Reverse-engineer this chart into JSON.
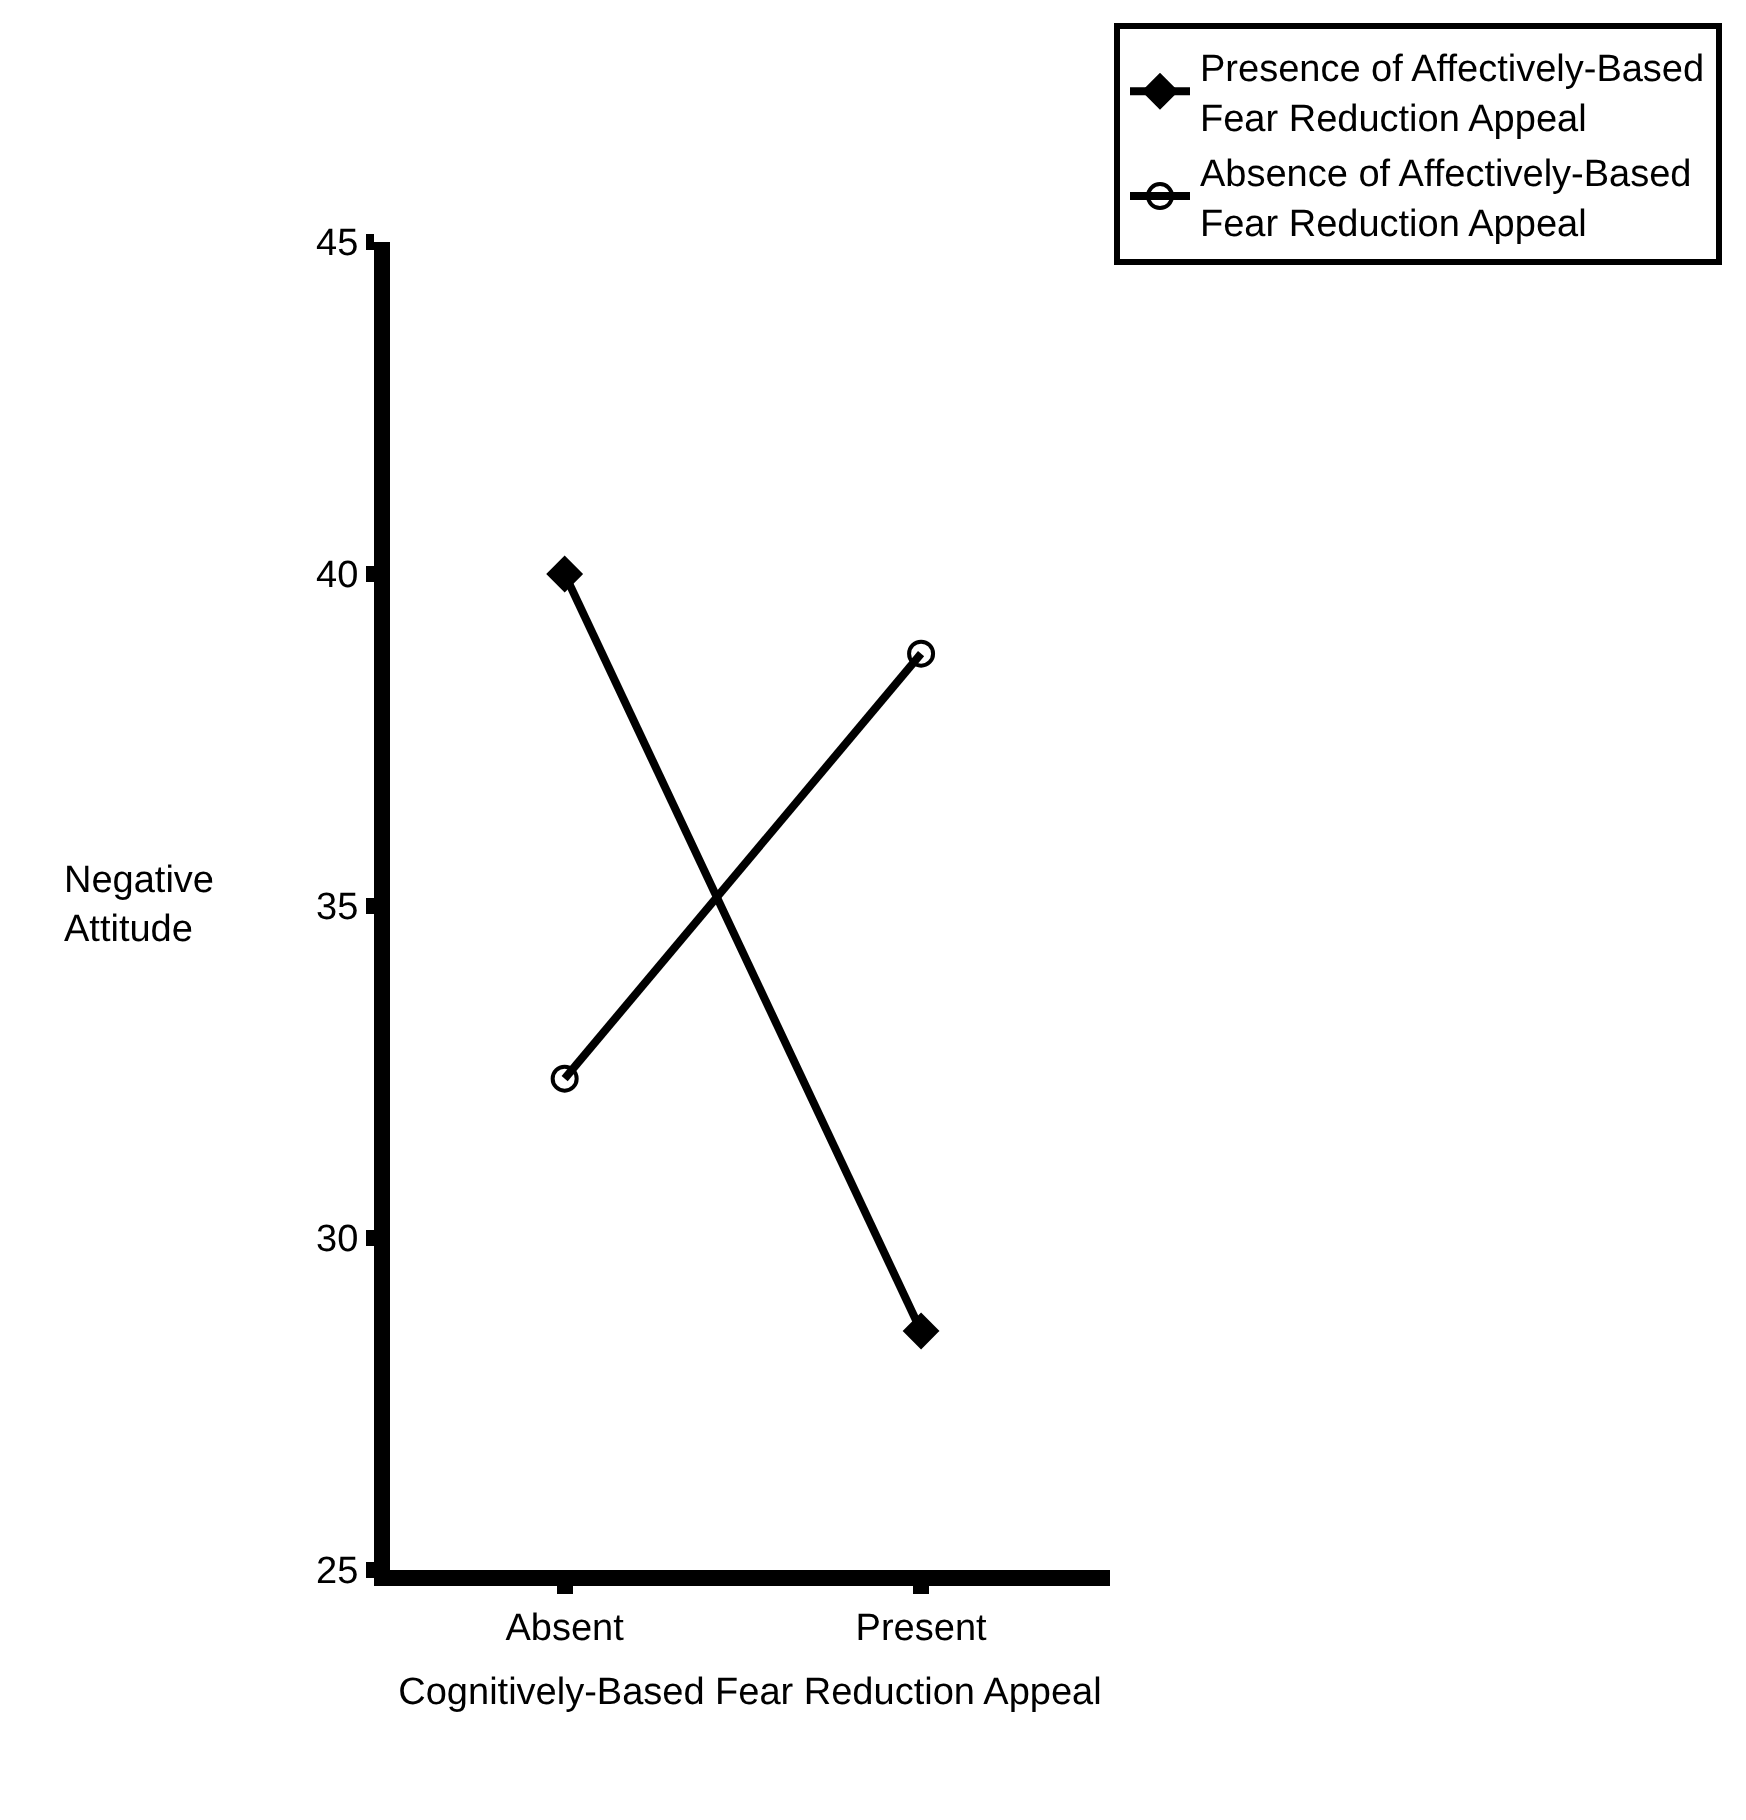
{
  "chart_data": {
    "type": "line",
    "categories": [
      "Absent",
      "Present"
    ],
    "xlabel": "Cognitively-Based Fear Reduction Appeal",
    "ylabel": "Negative\nAttitude",
    "series": [
      {
        "name": "Presence of Affectively-Based\nFear Reduction Appeal",
        "color": "#000000",
        "values": [
          40.0,
          28.6
        ],
        "marker": "diamond"
      },
      {
        "name": "Absence of Affectively-Based\nFear Reduction Appeal",
        "color": "#000000",
        "values": [
          32.4,
          38.8
        ],
        "marker": "circle"
      }
    ],
    "ylim": [
      25,
      45
    ],
    "yticks": [
      25,
      30,
      35,
      40,
      45
    ],
    "legend": "top right",
    "line_style": "solid"
  }
}
